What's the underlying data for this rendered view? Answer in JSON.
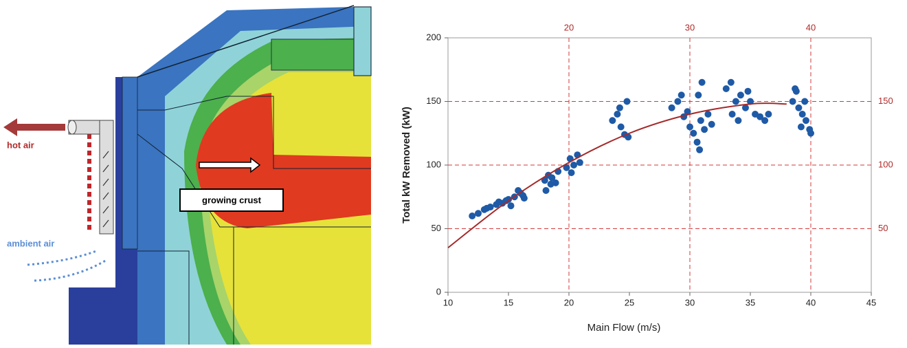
{
  "diagram": {
    "labels": {
      "hot_air": "hot air",
      "ambient_air": "ambient air",
      "growing_crust": "growing crust"
    }
  },
  "chart_data": {
    "type": "scatter",
    "xlabel": "Main Flow (m/s)",
    "ylabel": "Total kW Removed (kW)",
    "xlim": [
      10,
      45
    ],
    "xticks": [
      10,
      15,
      20,
      25,
      30,
      35,
      40,
      45
    ],
    "ylim": [
      0,
      200
    ],
    "yticks": [
      0,
      50,
      100,
      150,
      200
    ],
    "x2ticks": [
      20,
      30,
      40
    ],
    "y2ticks": [
      50,
      100,
      150
    ],
    "grid_color": "#d03a3a",
    "series": [
      {
        "color": "#1f5aa6",
        "x": [
          12,
          12.5,
          13,
          13.5,
          14,
          14.5,
          15,
          15.5,
          16,
          16.2,
          14.8,
          15.2,
          15.8,
          16.3,
          13.2,
          14.2,
          18,
          18.3,
          18.6,
          18.9,
          19.1,
          18.5,
          18.1,
          19.8,
          20.1,
          20.4,
          20.7,
          20.2,
          20.9,
          23.6,
          24,
          24.3,
          24.6,
          24.8,
          24.2,
          24.9,
          28.5,
          29,
          29.5,
          29.8,
          30,
          30.3,
          30.6,
          30.9,
          31.2,
          31.5,
          30.8,
          31,
          29.3,
          30.7,
          31.8,
          33,
          33.4,
          33.8,
          34.2,
          34.6,
          35,
          35.4,
          35.8,
          36.2,
          34,
          33.5,
          36.5,
          34.8,
          38.5,
          38.8,
          39,
          39.3,
          39.6,
          39.9,
          38.7,
          39.5,
          40,
          39.2
        ],
        "values": [
          60,
          62,
          65,
          67,
          69,
          70,
          73,
          75,
          78,
          76,
          72,
          68,
          80,
          74,
          66,
          71,
          88,
          92,
          90,
          86,
          95,
          85,
          80,
          98,
          105,
          100,
          108,
          94,
          102,
          135,
          140,
          130,
          124,
          150,
          145,
          122,
          145,
          150,
          138,
          142,
          130,
          125,
          118,
          135,
          128,
          140,
          112,
          165,
          155,
          155,
          132,
          160,
          165,
          150,
          155,
          145,
          150,
          140,
          138,
          135,
          135,
          140,
          140,
          158,
          150,
          158,
          145,
          140,
          135,
          128,
          160,
          150,
          125,
          130
        ]
      }
    ],
    "trend": {
      "color": "#a52a2a",
      "x": [
        10,
        15,
        20,
        25,
        30,
        35,
        38
      ],
      "values": [
        35,
        72,
        102,
        125,
        140,
        148,
        148
      ]
    }
  }
}
